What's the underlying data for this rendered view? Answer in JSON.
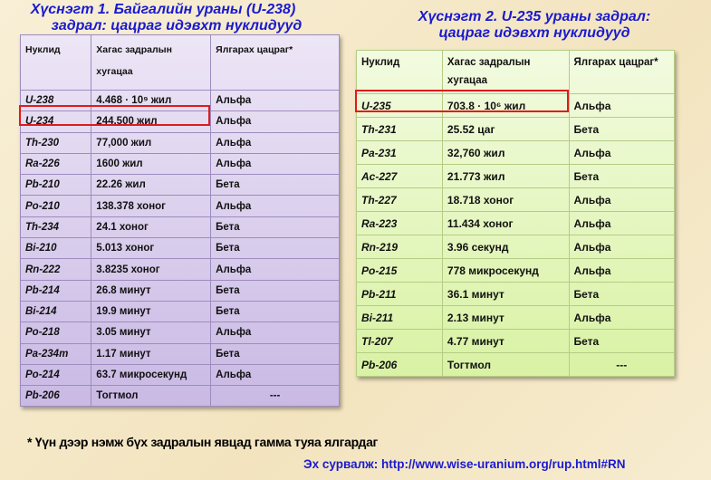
{
  "table1": {
    "title_line1": "Хүснэгт 1. Байгалийн ураны (U-238)",
    "title_line2": "задрал: цацраг идэвхт нуклидууд",
    "headers": [
      "Нуклид",
      "Хагас задралын хугацаа",
      "Ялгарах цацраг*"
    ],
    "rows": [
      [
        "U-238",
        "4.468 · 10⁹ жил",
        "Альфа"
      ],
      [
        "U-234",
        "244,500 жил",
        "Альфа"
      ],
      [
        "Th-230",
        "77,000 жил",
        "Альфа"
      ],
      [
        "Ra-226",
        "1600 жил",
        "Альфа"
      ],
      [
        "Pb-210",
        "22.26 жил",
        "Бета"
      ],
      [
        "Po-210",
        "138.378 хоног",
        "Альфа"
      ],
      [
        "Th-234",
        "24.1 хоног",
        "Бета"
      ],
      [
        "Bi-210",
        "5.013 хоног",
        "Бета"
      ],
      [
        "Rn-222",
        "3.8235 хоног",
        "Альфа"
      ],
      [
        "Pb-214",
        "26.8 минут",
        "Бета"
      ],
      [
        "Bi-214",
        "19.9 минут",
        "Бета"
      ],
      [
        "Po-218",
        "3.05 минут",
        "Альфа"
      ],
      [
        "Pa-234m",
        "1.17 минут",
        "Бета"
      ],
      [
        "Po-214",
        "63.7 микросекунд",
        "Альфа"
      ],
      [
        "Pb-206",
        "Тогтмол",
        "---"
      ]
    ],
    "highlighted_row": "U-234"
  },
  "table2": {
    "title_line1": "Хүснэгт 2. U-235 ураны задрал:",
    "title_line2": "цацраг идэвхт нуклидууд",
    "headers": [
      "Нуклид",
      "Хагас задралын хугацаа",
      "Ялгарах цацраг*"
    ],
    "rows": [
      [
        "U-235",
        "703.8 · 10⁶ жил",
        "Альфа"
      ],
      [
        "Th-231",
        "25.52 цаг",
        "Бета"
      ],
      [
        "Pa-231",
        "32,760 жил",
        "Альфа"
      ],
      [
        "Ac-227",
        "21.773 жил",
        "Бета"
      ],
      [
        "Th-227",
        "18.718 хоног",
        "Альфа"
      ],
      [
        "Ra-223",
        "11.434 хоног",
        "Альфа"
      ],
      [
        "Rn-219",
        "3.96 секунд",
        "Альфа"
      ],
      [
        "Po-215",
        "778 микросекунд",
        "Альфа"
      ],
      [
        "Pb-211",
        "36.1 минут",
        "Бета"
      ],
      [
        "Bi-211",
        "2.13 минут",
        "Альфа"
      ],
      [
        "Tl-207",
        "4.77 минут",
        "Бета"
      ],
      [
        "Pb-206",
        "Тогтмол",
        "---"
      ]
    ],
    "highlighted_row": "U-235"
  },
  "footnote": "* Үүн дээр нэмж бүх задралын явцад гамма туяа ялгардаг",
  "source": "Эх сурвалж: http://www.wise-uranium.org/rup.html#RN",
  "colors": {
    "title": "#1a1ad0",
    "highlight": "#e21a1a",
    "table1_bg": "#d8ccee",
    "table2_bg": "#e4f6bd"
  }
}
